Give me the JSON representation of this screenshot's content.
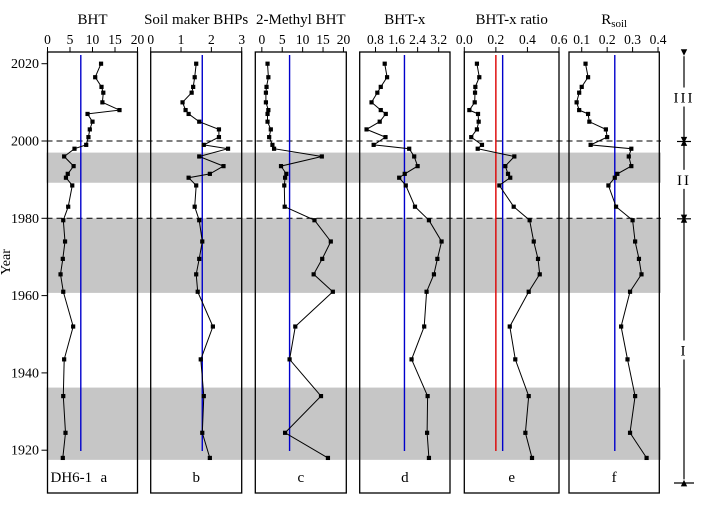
{
  "y_axis": {
    "label": "Year",
    "tick_years": [
      2020,
      2000,
      1980,
      1960,
      1940,
      1920
    ]
  },
  "sample_label": "DH6-1",
  "zone_labels": [
    "III",
    "II",
    "I"
  ],
  "colors": {
    "mean_line_blue": "#0000cc",
    "threshold_red": "#dd0000",
    "band_gray": "#c6c6c6",
    "series_black": "#000000"
  },
  "chart_data": {
    "type": "line",
    "orientation": "vertical-depth-profile",
    "ylabel": "Year",
    "ylim": [
      1908,
      2023
    ],
    "grid": false,
    "dashed_line_years": [
      2000,
      1980
    ],
    "gray_bands_year_ranges": [
      [
        1997.0,
        1989.2
      ],
      [
        1980.0,
        1960.7
      ],
      [
        1936.2,
        1917.5
      ]
    ],
    "zones": [
      {
        "label": "III",
        "from_year": 2022.2,
        "to_year": 2000.3
      },
      {
        "label": "II",
        "from_year": 1999.5,
        "to_year": 1980.4
      },
      {
        "label": "I",
        "from_year": 1979.4,
        "to_year": 1912.2
      }
    ],
    "years": [
      2020,
      2016.5,
      2014,
      2012.5,
      2010,
      2008,
      2007,
      2005,
      2003,
      2001,
      1999,
      1998,
      1996,
      1993.5,
      1991.5,
      1990.5,
      1988.5,
      1983,
      1979.5,
      1974,
      1969.5,
      1965.5,
      1961,
      1952,
      1943.5,
      1934,
      1924.5,
      1918
    ],
    "panels": [
      {
        "letter": "a",
        "title": "BHT",
        "xlim": [
          0,
          20
        ],
        "xticks": [
          "0",
          "5",
          "10",
          "15",
          "20"
        ],
        "xtick_values": [
          0,
          5,
          10,
          15,
          20
        ],
        "mean_line": 7.4,
        "values": [
          11.9,
          10.6,
          12.0,
          12.4,
          12.2,
          16.0,
          8.9,
          10.0,
          9.4,
          9.1,
          8.6,
          6.0,
          3.7,
          5.8,
          4.5,
          4.1,
          5.5,
          4.6,
          3.5,
          3.9,
          3.4,
          2.9,
          3.5,
          5.7,
          3.7,
          3.5,
          4.0,
          3.4
        ]
      },
      {
        "letter": "b",
        "title": "Soil maker BHPs",
        "xlim": [
          0,
          3
        ],
        "xticks": [
          "0",
          "1",
          "2",
          "3"
        ],
        "xtick_values": [
          0,
          1,
          2,
          3
        ],
        "mean_line": 1.7,
        "values": [
          1.5,
          1.45,
          1.4,
          1.35,
          1.05,
          1.15,
          1.25,
          1.6,
          2.25,
          2.25,
          1.75,
          2.55,
          1.6,
          2.4,
          1.95,
          1.25,
          1.5,
          1.45,
          1.6,
          1.7,
          1.6,
          1.5,
          1.55,
          2.05,
          1.65,
          1.75,
          1.7,
          1.95
        ]
      },
      {
        "letter": "c",
        "title": "2-Methyl BHT",
        "xlim": [
          -1.6,
          20.7
        ],
        "xticks": [
          "0",
          "5",
          "10",
          "15",
          "20"
        ],
        "xtick_values": [
          0,
          5,
          10,
          15,
          20
        ],
        "mean_line": 6.8,
        "values": [
          1.4,
          1.6,
          1.15,
          1.0,
          1.0,
          1.6,
          1.4,
          1.4,
          2.2,
          1.8,
          2.6,
          3.0,
          14.7,
          4.7,
          6.0,
          5.7,
          5.5,
          5.6,
          12.9,
          16.9,
          14.8,
          12.7,
          17.4,
          8.2,
          6.8,
          14.5,
          5.7,
          16.2
        ]
      },
      {
        "letter": "d",
        "title": "BHT-x",
        "xlim": [
          0.2,
          3.63
        ],
        "xticks": [
          "0.8",
          "1.6",
          "2.4",
          "3.2"
        ],
        "xtick_values": [
          0.8,
          1.6,
          2.4,
          3.2
        ],
        "mean_line": 1.9,
        "values": [
          1.15,
          1.24,
          1.0,
          0.87,
          0.65,
          1.0,
          1.19,
          0.96,
          0.46,
          1.18,
          0.73,
          2.08,
          2.27,
          2.4,
          1.91,
          1.7,
          1.95,
          2.3,
          2.83,
          3.31,
          3.15,
          3.02,
          2.74,
          2.65,
          2.17,
          2.78,
          2.76,
          2.83
        ]
      },
      {
        "letter": "e",
        "title": "BHT-x ratio",
        "xlim": [
          0,
          0.6
        ],
        "xticks": [
          "0.0",
          "0.2",
          "0.4",
          "0.6"
        ],
        "xtick_values": [
          0,
          0.2,
          0.4,
          0.6
        ],
        "mean_line": 0.243,
        "red_line": 0.2,
        "values": [
          0.08,
          0.095,
          0.07,
          0.068,
          0.066,
          0.032,
          0.087,
          0.091,
          0.08,
          0.044,
          0.112,
          0.085,
          0.317,
          0.26,
          0.277,
          0.291,
          0.222,
          0.313,
          0.414,
          0.44,
          0.467,
          0.478,
          0.408,
          0.288,
          0.323,
          0.408,
          0.387,
          0.429
        ]
      },
      {
        "letter": "f",
        "title": "R",
        "title_sub": "soil",
        "xlim": [
          0.05,
          0.405
        ],
        "xticks": [
          "0.1",
          "0.2",
          "0.3",
          "0.4"
        ],
        "xtick_values": [
          0.1,
          0.2,
          0.3,
          0.4
        ],
        "mean_line": 0.23,
        "values": [
          0.115,
          0.125,
          0.1,
          0.09,
          0.08,
          0.09,
          0.125,
          0.13,
          0.195,
          0.2,
          0.135,
          0.295,
          0.285,
          0.295,
          0.24,
          0.23,
          0.205,
          0.235,
          0.3,
          0.31,
          0.325,
          0.335,
          0.29,
          0.255,
          0.28,
          0.31,
          0.29,
          0.355
        ]
      }
    ]
  }
}
